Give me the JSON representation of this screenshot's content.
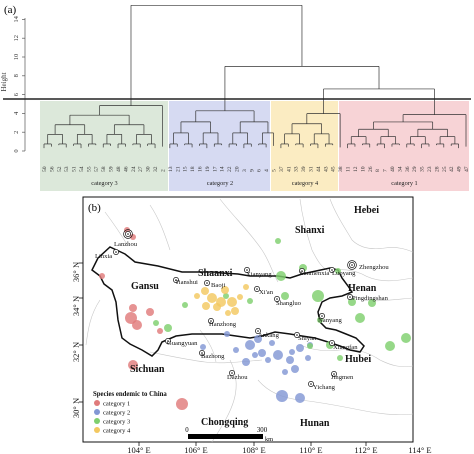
{
  "panel_a": {
    "label": "(a)",
    "ylabel": "Height",
    "yticks": [
      "0",
      "2",
      "4",
      "6",
      "8",
      "10",
      "12",
      "14"
    ],
    "cut_height": 5,
    "clusters": [
      {
        "label": "category 3",
        "color": "#dce8da",
        "leaves": [
          "50",
          "56",
          "52",
          "53",
          "51",
          "54",
          "55",
          "57",
          "58",
          "59",
          "48",
          "46",
          "24",
          "27",
          "30",
          "32",
          "2"
        ]
      },
      {
        "label": "category 2",
        "color": "#d6daf2",
        "leaves": [
          "13",
          "21",
          "15",
          "18",
          "16",
          "19",
          "17",
          "14",
          "22",
          "20",
          "3",
          "9",
          "6",
          "4",
          "5"
        ]
      },
      {
        "label": "category 4",
        "color": "#fbecc2",
        "leaves": [
          "37",
          "41",
          "33",
          "39",
          "31",
          "44",
          "43",
          "45",
          "38"
        ]
      },
      {
        "label": "category 1",
        "color": "#f7d3d6",
        "leaves": [
          "11",
          "12",
          "10",
          "26",
          "8",
          "7",
          "40",
          "34",
          "36",
          "29",
          "35",
          "23",
          "28",
          "25",
          "42",
          "49",
          "47"
        ]
      }
    ]
  },
  "panel_b": {
    "label": "(b)",
    "lat_labels": [
      "36° N",
      "34° N",
      "32° N",
      "30° N"
    ],
    "lon_labels": [
      "104° E",
      "106° E",
      "108° E",
      "110° E",
      "112° E",
      "114° E"
    ],
    "provinces": [
      "Hebei",
      "Shanxi",
      "Shaanxi",
      "Henan",
      "Gansu",
      "Sichuan",
      "Hubei",
      "Chongqing",
      "Hunan"
    ],
    "cities": [
      "Lanzhou",
      "Linxia",
      "Tianshui",
      "Baoji",
      "Xianyang",
      "Xi'an",
      "Sanmenxia",
      "Luoyang",
      "Zhengzhou",
      "Pingdingshan",
      "Shangluo",
      "Nanyang",
      "Hanzhong",
      "Ankang",
      "Shiyan",
      "Xiangfan",
      "Guangyuan",
      "Bazhong",
      "Dazhou",
      "Jingmen",
      "Yichang"
    ],
    "scale": {
      "start": "0",
      "end": "300",
      "unit": "km"
    },
    "legend": {
      "title": "Species endemic to China",
      "items": [
        {
          "label": "category 1",
          "color": "#e07b7b"
        },
        {
          "label": "category 2",
          "color": "#8297d4"
        },
        {
          "label": "category 3",
          "color": "#7fcf6e"
        },
        {
          "label": "category 4",
          "color": "#f3c860"
        }
      ]
    }
  }
}
